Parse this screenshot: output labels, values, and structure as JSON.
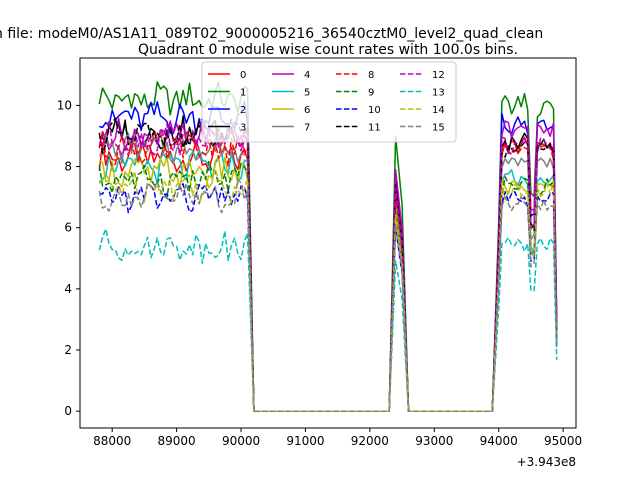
{
  "suptitle": "n file: modeM0/AS1A11_089T02_9000005216_36540cztM0_level2_quad_clean",
  "chart_data": {
    "type": "line",
    "title": "Quadrant 0 module wise count rates with 100.0s bins.",
    "xlabel": "",
    "ylabel": "",
    "x_offset_label": "+3.943e8",
    "xlim": [
      87500,
      95200
    ],
    "ylim": [
      -0.55,
      11.55
    ],
    "xticks": [
      88000,
      89000,
      90000,
      91000,
      92000,
      93000,
      94000,
      95000
    ],
    "xtick_labels": [
      "88000",
      "89000",
      "90000",
      "91000",
      "92000",
      "93000",
      "94000",
      "95000"
    ],
    "yticks": [
      0,
      2,
      4,
      6,
      8,
      10
    ],
    "ytick_labels": [
      "0",
      "2",
      "4",
      "6",
      "8",
      "10"
    ],
    "grid": false,
    "legend": {
      "placement": "top-center",
      "columns": 4
    },
    "segments": {
      "seg1_start": 87800,
      "seg1_end": 90100,
      "zero_start": 90200,
      "zero_end": 92300,
      "seg2": [
        92400,
        92500
      ],
      "zero2_start": 92600,
      "zero2_end": 93900,
      "seg3_start": 94000,
      "seg3_end": 94900
    },
    "series": [
      {
        "name": "0",
        "color": "#ff0000",
        "dash": "solid",
        "base": 8.3,
        "spike": 7.2,
        "peak": 8.9
      },
      {
        "name": "1",
        "color": "#008000",
        "dash": "solid",
        "base": 10.2,
        "spike": 9.0,
        "peak": 10.3
      },
      {
        "name": "2",
        "color": "#0000ff",
        "dash": "solid",
        "base": 9.6,
        "spike": 7.8,
        "peak": 9.6
      },
      {
        "name": "3",
        "color": "#000000",
        "dash": "solid",
        "base": 9.1,
        "spike": 7.6,
        "peak": 9.0
      },
      {
        "name": "4",
        "color": "#bf00bf",
        "dash": "solid",
        "base": 9.0,
        "spike": 7.9,
        "peak": 9.5
      },
      {
        "name": "5",
        "color": "#00bfbf",
        "dash": "solid",
        "base": 8.0,
        "spike": 6.8,
        "peak": 7.8
      },
      {
        "name": "6",
        "color": "#bfbf00",
        "dash": "solid",
        "base": 7.8,
        "spike": 6.7,
        "peak": 7.6
      },
      {
        "name": "7",
        "color": "#808080",
        "dash": "solid",
        "base": 8.6,
        "spike": 7.0,
        "peak": 8.4
      },
      {
        "name": "8",
        "color": "#ff0000",
        "dash": "dashed",
        "base": 8.6,
        "spike": 7.1,
        "peak": 8.8
      },
      {
        "name": "9",
        "color": "#008000",
        "dash": "dashed",
        "base": 7.6,
        "spike": 6.5,
        "peak": 7.6
      },
      {
        "name": "10",
        "color": "#0000ff",
        "dash": "dashed",
        "base": 7.0,
        "spike": 6.0,
        "peak": 7.2
      },
      {
        "name": "11",
        "color": "#000000",
        "dash": "dashed",
        "base": 9.0,
        "spike": 7.4,
        "peak": 8.8
      },
      {
        "name": "12",
        "color": "#bf00bf",
        "dash": "dashed",
        "base": 8.9,
        "spike": 7.3,
        "peak": 9.0
      },
      {
        "name": "13",
        "color": "#00bfbf",
        "dash": "dashed",
        "base": 5.4,
        "spike": 4.9,
        "peak": 5.6
      },
      {
        "name": "14",
        "color": "#bfbf00",
        "dash": "dashed",
        "base": 7.4,
        "spike": 6.4,
        "peak": 7.4
      },
      {
        "name": "15",
        "color": "#808080",
        "dash": "dashed",
        "base": 7.0,
        "spike": 6.1,
        "peak": 7.0
      }
    ]
  }
}
